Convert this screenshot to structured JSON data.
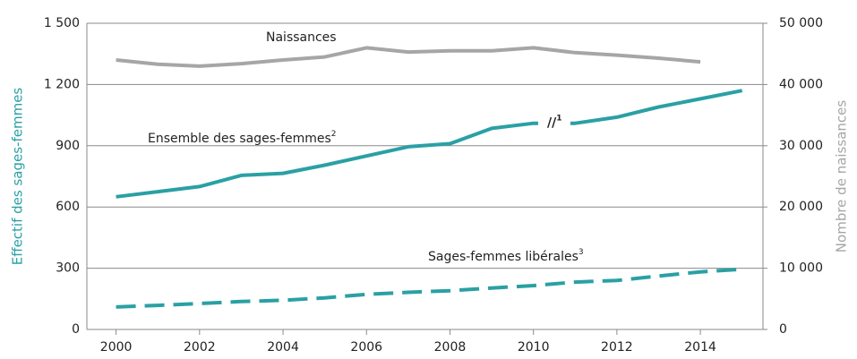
{
  "chart_data": {
    "type": "line",
    "x": [
      2000,
      2001,
      2002,
      2003,
      2004,
      2005,
      2006,
      2007,
      2008,
      2009,
      2010,
      2011,
      2012,
      2013,
      2014,
      2015
    ],
    "series": [
      {
        "name": "Ensemble des sages-femmes",
        "superscript": "2",
        "color": "#2aa0a4",
        "dash": false,
        "values": [
          650,
          675,
          700,
          755,
          765,
          805,
          850,
          895,
          910,
          985,
          1010,
          1010,
          1040,
          1090,
          1130,
          1170
        ]
      },
      {
        "name": "Sages-femmes libérales",
        "superscript": "3",
        "color": "#2aa0a4",
        "dash": true,
        "values": [
          110,
          118,
          127,
          137,
          143,
          155,
          172,
          182,
          190,
          203,
          215,
          232,
          240,
          262,
          282,
          295
        ]
      },
      {
        "name": "Naissances",
        "color": "#a6a6a6",
        "dash": false,
        "axis": "y2",
        "values": [
          44000,
          43300,
          43000,
          43400,
          44000,
          44500,
          46000,
          45300,
          45500,
          45500,
          46000,
          45200,
          44800,
          44300,
          43700,
          null
        ]
      }
    ],
    "annotation": {
      "text": "//",
      "superscript": "1",
      "x": 2010.5
    },
    "ylabel": "Effectif des sages-femmes",
    "y2label": "Nombre de naissances",
    "xlim": [
      1999.3,
      2015.5
    ],
    "xticks": [
      2000,
      2002,
      2004,
      2006,
      2008,
      2010,
      2012,
      2014
    ],
    "ylim": [
      0,
      1500
    ],
    "yticks": [
      0,
      300,
      600,
      900,
      {
        "value": 1200,
        "label": "1 200"
      },
      {
        "value": 1500,
        "label": "1 500"
      }
    ],
    "y2lim": [
      0,
      50000
    ],
    "y2ticks": [
      0,
      {
        "value": 10000,
        "label": "10 000"
      },
      {
        "value": 20000,
        "label": "20 000"
      },
      {
        "value": 30000,
        "label": "30 000"
      },
      {
        "value": 40000,
        "label": "40 000"
      },
      {
        "value": 50000,
        "label": "50 000"
      }
    ],
    "grid": true
  }
}
